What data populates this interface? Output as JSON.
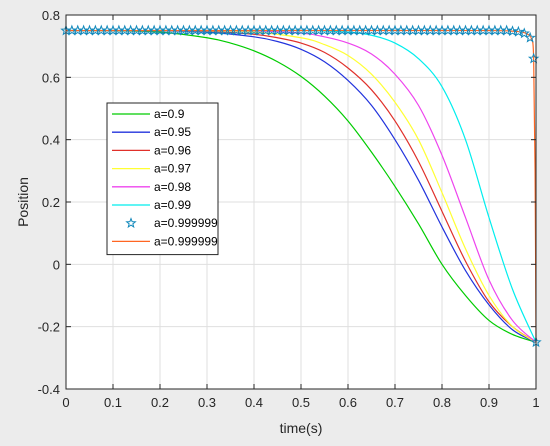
{
  "chart_data": {
    "type": "line",
    "title": "",
    "xlabel": "time(s)",
    "ylabel": "Position",
    "xlim": [
      0,
      1
    ],
    "ylim": [
      -0.4,
      0.8
    ],
    "xticks": [
      0,
      0.1,
      0.2,
      0.3,
      0.4,
      0.5,
      0.6,
      0.7,
      0.8,
      0.9,
      1
    ],
    "yticks": [
      -0.4,
      -0.2,
      0,
      0.2,
      0.4,
      0.6,
      0.8
    ],
    "xtick_labels": [
      "0",
      "0.1",
      "0.2",
      "0.3",
      "0.4",
      "0.5",
      "0.6",
      "0.7",
      "0.8",
      "0.9",
      "1"
    ],
    "ytick_labels": [
      "-0.4",
      "-0.2",
      "0",
      "0.2",
      "0.4",
      "0.6",
      "0.8"
    ],
    "grid": true,
    "legend_position": "center-left",
    "series": [
      {
        "name": "a=0.9",
        "color": "#00cc00",
        "style": "line",
        "x": [
          0,
          0.1,
          0.2,
          0.3,
          0.35,
          0.4,
          0.45,
          0.5,
          0.55,
          0.6,
          0.65,
          0.7,
          0.75,
          0.8,
          0.85,
          0.9,
          0.95,
          1.0
        ],
        "y": [
          0.75,
          0.749,
          0.745,
          0.727,
          0.71,
          0.685,
          0.65,
          0.603,
          0.54,
          0.46,
          0.36,
          0.25,
          0.13,
          0.0,
          -0.1,
          -0.18,
          -0.225,
          -0.25
        ]
      },
      {
        "name": "a=0.95",
        "color": "#2233dd",
        "style": "line",
        "x": [
          0,
          0.1,
          0.2,
          0.3,
          0.4,
          0.45,
          0.5,
          0.55,
          0.6,
          0.65,
          0.7,
          0.75,
          0.8,
          0.85,
          0.9,
          0.95,
          1.0
        ],
        "y": [
          0.75,
          0.75,
          0.749,
          0.745,
          0.73,
          0.715,
          0.69,
          0.65,
          0.59,
          0.51,
          0.4,
          0.27,
          0.12,
          -0.02,
          -0.13,
          -0.21,
          -0.25
        ]
      },
      {
        "name": "a=0.96",
        "color": "#e0302a",
        "style": "line",
        "x": [
          0,
          0.1,
          0.2,
          0.3,
          0.4,
          0.45,
          0.5,
          0.55,
          0.6,
          0.65,
          0.7,
          0.75,
          0.8,
          0.85,
          0.9,
          0.95,
          1.0
        ],
        "y": [
          0.75,
          0.75,
          0.75,
          0.748,
          0.738,
          0.727,
          0.71,
          0.68,
          0.63,
          0.56,
          0.46,
          0.33,
          0.17,
          0.01,
          -0.12,
          -0.2,
          -0.25
        ]
      },
      {
        "name": "a=0.97",
        "color": "#ffff33",
        "style": "line",
        "x": [
          0,
          0.1,
          0.2,
          0.3,
          0.4,
          0.5,
          0.55,
          0.6,
          0.65,
          0.7,
          0.75,
          0.8,
          0.85,
          0.9,
          0.95,
          1.0
        ],
        "y": [
          0.75,
          0.75,
          0.75,
          0.749,
          0.745,
          0.727,
          0.705,
          0.67,
          0.61,
          0.52,
          0.4,
          0.23,
          0.05,
          -0.1,
          -0.2,
          -0.25
        ]
      },
      {
        "name": "a=0.98",
        "color": "#ee44ee",
        "style": "line",
        "x": [
          0,
          0.1,
          0.2,
          0.3,
          0.4,
          0.5,
          0.55,
          0.6,
          0.65,
          0.7,
          0.75,
          0.8,
          0.85,
          0.9,
          0.95,
          1.0
        ],
        "y": [
          0.75,
          0.75,
          0.75,
          0.75,
          0.749,
          0.742,
          0.73,
          0.71,
          0.675,
          0.61,
          0.51,
          0.35,
          0.15,
          -0.05,
          -0.18,
          -0.25
        ]
      },
      {
        "name": "a=0.99",
        "color": "#00eeee",
        "style": "line",
        "x": [
          0,
          0.1,
          0.2,
          0.3,
          0.4,
          0.5,
          0.6,
          0.65,
          0.7,
          0.75,
          0.8,
          0.85,
          0.9,
          0.95,
          1.0
        ],
        "y": [
          0.75,
          0.75,
          0.75,
          0.75,
          0.75,
          0.75,
          0.745,
          0.735,
          0.71,
          0.66,
          0.57,
          0.4,
          0.15,
          -0.08,
          -0.25
        ]
      },
      {
        "name": "a=0.999999",
        "color": "#1188bb",
        "style": "marker",
        "x": [
          0.0,
          0.0125,
          0.025,
          0.0375,
          0.05,
          0.0625,
          0.075,
          0.0875,
          0.1,
          0.1125,
          0.125,
          0.1375,
          0.15,
          0.1625,
          0.175,
          0.1875,
          0.2,
          0.2125,
          0.225,
          0.2375,
          0.25,
          0.2625,
          0.275,
          0.2875,
          0.3,
          0.3125,
          0.325,
          0.3375,
          0.35,
          0.3625,
          0.375,
          0.3875,
          0.4,
          0.4125,
          0.425,
          0.4375,
          0.45,
          0.4625,
          0.475,
          0.4875,
          0.5,
          0.5125,
          0.525,
          0.5375,
          0.55,
          0.5625,
          0.575,
          0.5875,
          0.6,
          0.6125,
          0.625,
          0.6375,
          0.65,
          0.6625,
          0.675,
          0.6875,
          0.7,
          0.7125,
          0.725,
          0.7375,
          0.75,
          0.7625,
          0.775,
          0.7875,
          0.8,
          0.8125,
          0.825,
          0.8375,
          0.85,
          0.8625,
          0.875,
          0.8875,
          0.9,
          0.9125,
          0.925,
          0.9375,
          0.95,
          0.9625,
          0.975,
          0.9875,
          0.995,
          1.0
        ],
        "y": [
          0.75,
          0.75,
          0.75,
          0.75,
          0.75,
          0.75,
          0.75,
          0.75,
          0.75,
          0.75,
          0.75,
          0.75,
          0.75,
          0.75,
          0.75,
          0.75,
          0.75,
          0.75,
          0.75,
          0.75,
          0.75,
          0.75,
          0.75,
          0.75,
          0.75,
          0.75,
          0.75,
          0.75,
          0.75,
          0.75,
          0.75,
          0.75,
          0.75,
          0.75,
          0.75,
          0.75,
          0.75,
          0.75,
          0.75,
          0.75,
          0.75,
          0.75,
          0.75,
          0.75,
          0.75,
          0.75,
          0.75,
          0.75,
          0.75,
          0.75,
          0.75,
          0.75,
          0.75,
          0.75,
          0.75,
          0.75,
          0.75,
          0.75,
          0.75,
          0.75,
          0.75,
          0.75,
          0.75,
          0.75,
          0.75,
          0.75,
          0.75,
          0.75,
          0.75,
          0.75,
          0.75,
          0.75,
          0.75,
          0.75,
          0.75,
          0.75,
          0.748,
          0.746,
          0.741,
          0.727,
          0.66,
          -0.25
        ]
      },
      {
        "name": "a=0.999999",
        "color": "#ff6622",
        "style": "line",
        "x": [
          0,
          0.3,
          0.6,
          0.9,
          0.95,
          0.97,
          0.98,
          0.99,
          0.995,
          0.998,
          1.0
        ],
        "y": [
          0.75,
          0.75,
          0.75,
          0.75,
          0.748,
          0.745,
          0.74,
          0.725,
          0.66,
          0.3,
          -0.25
        ]
      }
    ]
  }
}
